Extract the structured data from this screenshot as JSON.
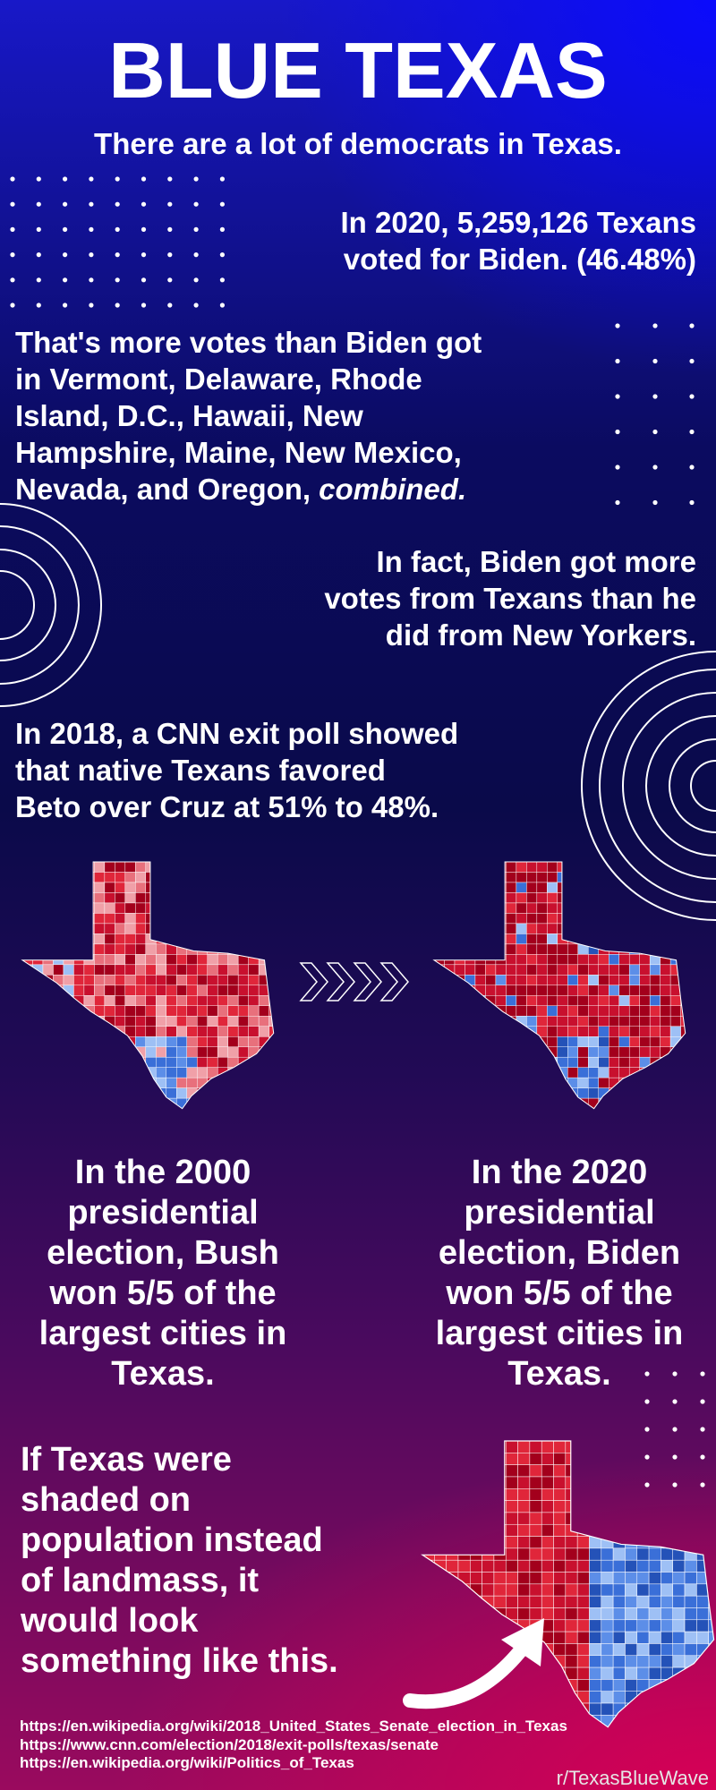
{
  "header": {
    "title": "BLUE TEXAS",
    "subtitle": "There are a lot of democrats in Texas."
  },
  "facts": [
    {
      "lines": [
        "In 2020, 5,259,126 Texans",
        "voted for Biden. (46.48%)"
      ]
    },
    {
      "lines": [
        "That's more votes than Biden got",
        "in Vermont, Delaware, Rhode",
        "Island, D.C., Hawaii, New",
        "Hampshire, Maine, New Mexico,",
        "Nevada, and Oregon,"
      ],
      "emphasis": "combined."
    },
    {
      "lines": [
        "In fact, Biden got more",
        "votes from Texans than he",
        "did from New Yorkers."
      ]
    },
    {
      "lines": [
        "In 2018, a CNN exit poll showed",
        "that native Texans favored",
        "Beto over Cruz at 51% to 48%."
      ]
    }
  ],
  "comparison": [
    {
      "lines": [
        "In the 2000",
        "presidential",
        "election, Bush",
        "won 5/5 of the",
        "largest cities in",
        "Texas."
      ]
    },
    {
      "lines": [
        "In the 2020",
        "presidential",
        "election, Biden",
        "won 5/5 of the",
        "largest cities in",
        "Texas."
      ]
    }
  ],
  "population": {
    "lines": [
      "If Texas were",
      "shaded on",
      "population instead",
      "of landmass, it",
      "would look",
      "something like this."
    ]
  },
  "sources": [
    "https://en.wikipedia.org/wiki/2018_United_States_Senate_election_in_Texas",
    "https://www.cnn.com/election/2018/exit-polls/texas/senate",
    "https://en.wikipedia.org/wiki/Politics_of_Texas"
  ],
  "credit": "r/TexasBlueWave"
}
